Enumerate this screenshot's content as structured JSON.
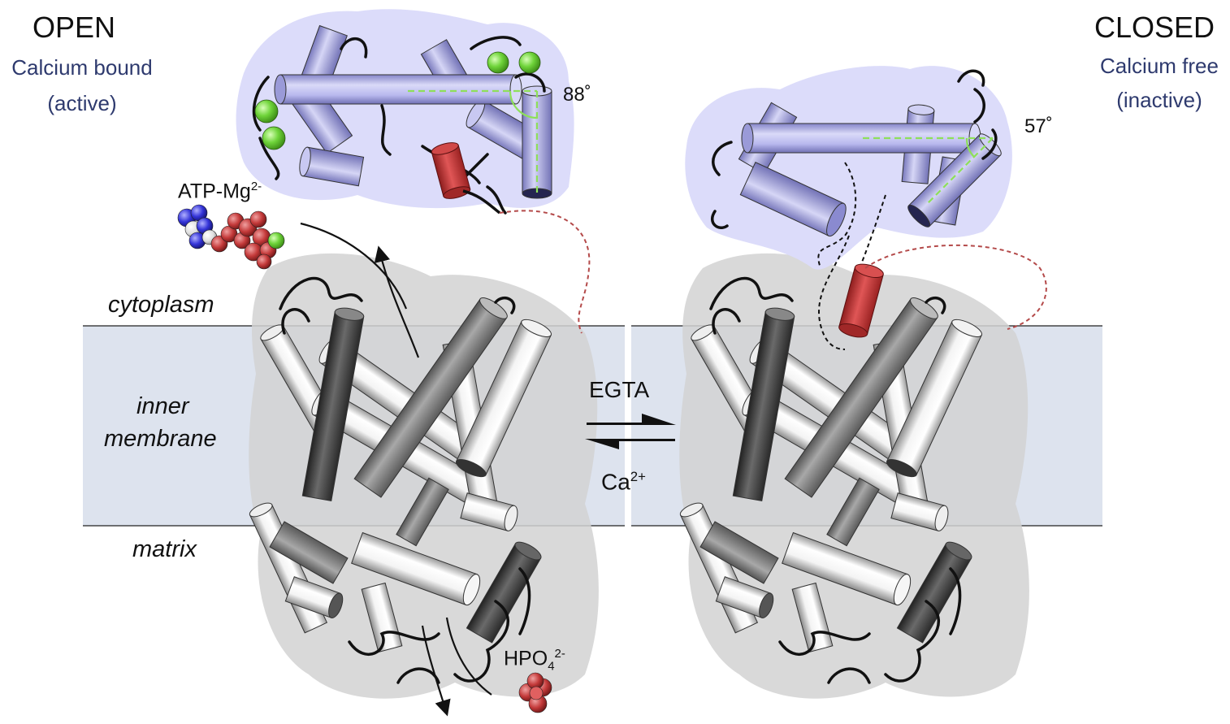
{
  "open": {
    "title": "OPEN",
    "subtitle_line1": "Calcium bound",
    "subtitle_line2": "(active)",
    "angle": "88˚"
  },
  "closed": {
    "title": "CLOSED",
    "subtitle_line1": "Calcium free",
    "subtitle_line2": "(inactive)",
    "angle": "57˚"
  },
  "regions": {
    "cytoplasm": "cytoplasm",
    "membrane_line1": "inner",
    "membrane_line2": "membrane",
    "matrix": "matrix"
  },
  "molecules": {
    "atp_base": "ATP-Mg",
    "atp_charge": "2-",
    "phosphate_base": "HPO",
    "phosphate_sub": "4",
    "phosphate_charge": "2-"
  },
  "equilibrium": {
    "forward": "EGTA",
    "reverse_base": "Ca",
    "reverse_charge": "2+"
  },
  "colors": {
    "membrane": "#dde3ee",
    "regulatory_domain": "#dcdcfa",
    "helix_lilac": "#a9a9e6",
    "calcium": "#6fd43a",
    "red_helix": "#c43a3a",
    "angle_guide": "#8ee05a",
    "text_blue": "#2e3a6e"
  }
}
